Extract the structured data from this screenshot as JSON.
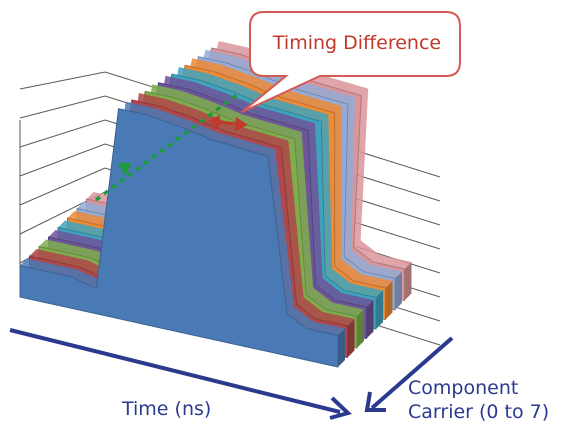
{
  "chart_data": {
    "type": "area",
    "title": "",
    "xlabel": "Time (ns)",
    "zlabel_line1": "Component",
    "zlabel_line2": "Carrier (0 to 7)",
    "annotation": "Timing Difference",
    "grid": true,
    "series": [
      {
        "name": "0",
        "color": "#4a7ab5",
        "values": [
          0.15,
          0.15,
          0.15,
          0.12,
          1.0,
          1.0,
          0.98,
          0.95,
          0.93,
          0.2,
          0.15,
          0.15,
          0.15
        ]
      },
      {
        "name": "1",
        "color": "#b0474a",
        "values": [
          0.15,
          0.15,
          0.15,
          0.12,
          1.0,
          1.0,
          0.98,
          0.95,
          0.93,
          0.2,
          0.15,
          0.15,
          0.15
        ]
      },
      {
        "name": "2",
        "color": "#7fad4e",
        "values": [
          0.15,
          0.15,
          0.15,
          0.12,
          1.0,
          1.0,
          0.98,
          0.95,
          0.93,
          0.2,
          0.15,
          0.15,
          0.15
        ]
      },
      {
        "name": "3",
        "color": "#6d559a",
        "values": [
          0.15,
          0.15,
          0.15,
          0.12,
          1.0,
          1.0,
          0.98,
          0.95,
          0.93,
          0.2,
          0.15,
          0.15,
          0.15
        ]
      },
      {
        "name": "4",
        "color": "#3fa3bd",
        "values": [
          0.15,
          0.15,
          0.15,
          0.12,
          1.0,
          1.0,
          0.98,
          0.95,
          0.93,
          0.2,
          0.15,
          0.15,
          0.15
        ]
      },
      {
        "name": "5",
        "color": "#ed8a37",
        "values": [
          0.15,
          0.15,
          0.15,
          0.12,
          1.0,
          1.0,
          0.98,
          0.95,
          0.93,
          0.2,
          0.15,
          0.15,
          0.15
        ]
      },
      {
        "name": "6",
        "color": "#93abd6",
        "values": [
          0.15,
          0.15,
          0.15,
          0.12,
          1.0,
          1.0,
          0.98,
          0.95,
          0.93,
          0.2,
          0.15,
          0.15,
          0.15
        ]
      },
      {
        "name": "7",
        "color": "#d9959a",
        "values": [
          0.15,
          0.15,
          0.15,
          0.12,
          1.0,
          1.0,
          0.98,
          0.95,
          0.93,
          0.2,
          0.15,
          0.15,
          0.15
        ]
      }
    ]
  }
}
